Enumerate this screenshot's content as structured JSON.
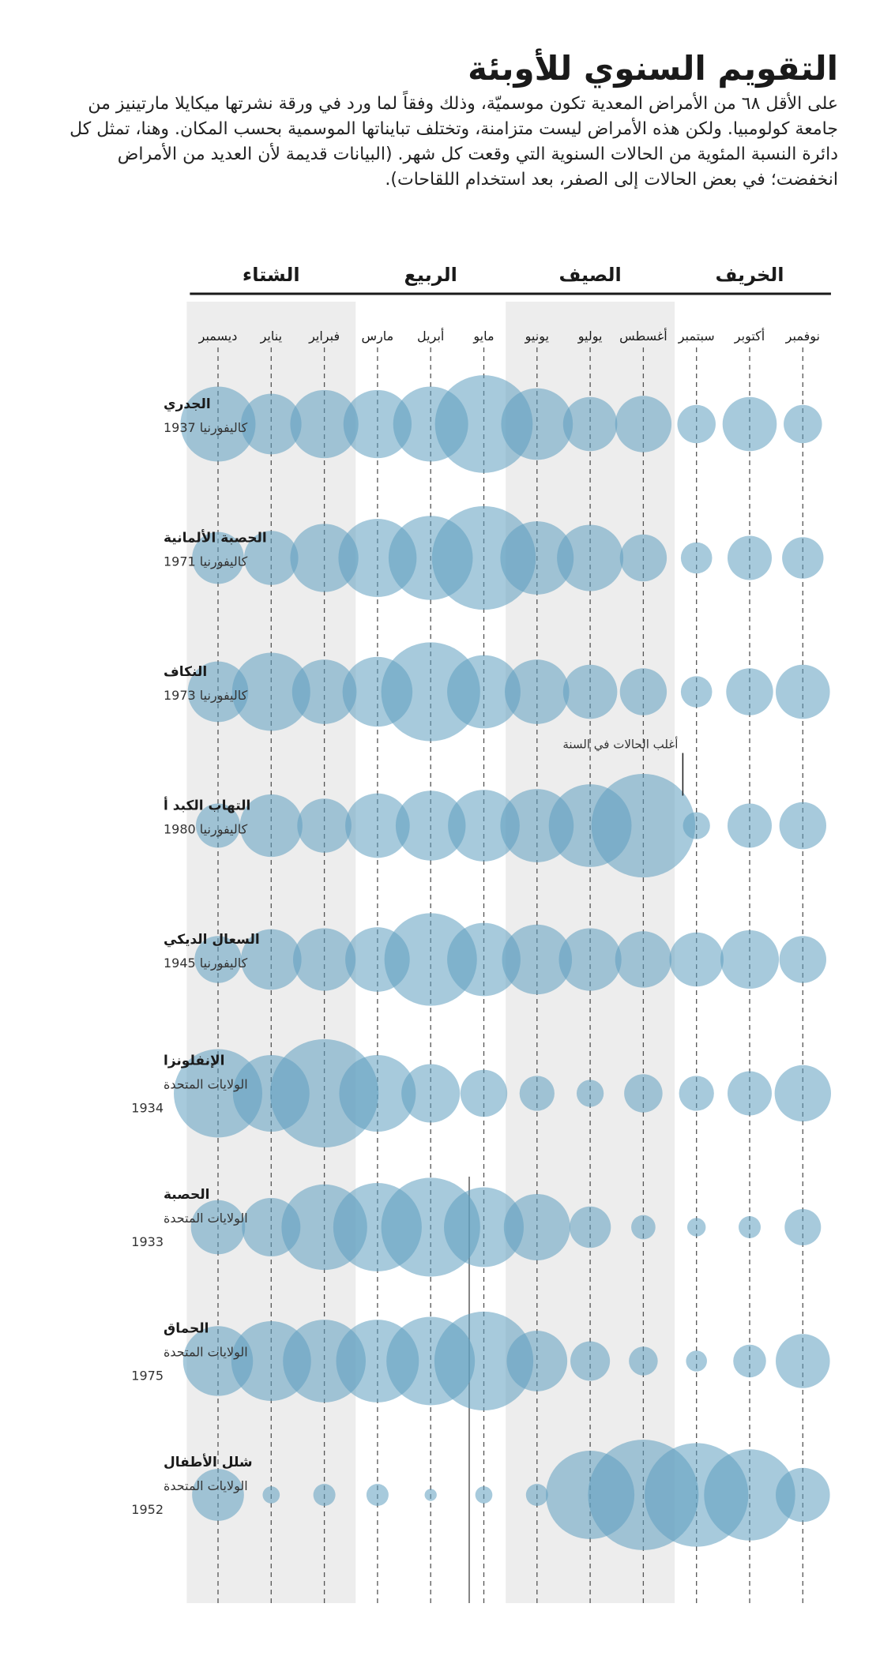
{
  "header": {
    "title": "التقويم السنوي للأوبئة",
    "intro": "على الأقل ٦٨ من الأمراض المعدية تكون موسميّة، وذلك وفقاً لما ورد في ورقة نشرتها ميكايلا مارتينيز من جامعة كولومبيا. ولكن هذه الأمراض ليست متزامنة، وتختلف تبايناتها الموسمية بحسب المكان. وهنا، تمثل كل دائرة النسبة المئوية من الحالات السنوية التي وقعت كل شهر. (البيانات قديمة لأن العديد من الأمراض انخفضت؛ في بعض الحالات إلى الصفر، بعد استخدام اللقاحات)."
  },
  "chart_data": {
    "type": "bubble-matrix",
    "months": [
      "ديسمبر",
      "يناير",
      "فبراير",
      "مارس",
      "أبريل",
      "مايو",
      "يونيو",
      "يوليو",
      "أغسطس",
      "سبتمبر",
      "أكتوبر",
      "نوفمبر"
    ],
    "seasons": [
      {
        "label": "الشتاء",
        "months": [
          "ديسمبر",
          "يناير",
          "فبراير"
        ]
      },
      {
        "label": "الربيع",
        "months": [
          "مارس",
          "أبريل",
          "مايو"
        ]
      },
      {
        "label": "الصيف",
        "months": [
          "يونيو",
          "يوليو",
          "أغسطس"
        ]
      },
      {
        "label": "الخريف",
        "months": [
          "سبتمبر",
          "أكتوبر",
          "نوفمبر"
        ]
      }
    ],
    "shaded_seasons": [
      "الشتاء",
      "الصيف"
    ],
    "annotation": {
      "text": "أغلب الحالات في السنة",
      "disease": "التهاب الكبد أ",
      "month": "أغسطس"
    },
    "series": [
      {
        "name": "الجدري",
        "place": "كاليفورنيا",
        "year": "1937",
        "values": [
          11.5,
          7.5,
          9.5,
          9.5,
          11.5,
          19.5,
          10.5,
          6,
          6.5,
          3,
          6,
          3
        ]
      },
      {
        "name": "الحصبة الألمانية",
        "place": "كاليفورنيا",
        "year": "1971",
        "values": [
          5.5,
          6,
          9.5,
          12.5,
          14.5,
          22,
          11,
          9,
          4.5,
          2,
          4,
          3.5
        ]
      },
      {
        "name": "النكاف",
        "place": "كاليفورنيا",
        "year": "1973",
        "values": [
          7.5,
          12.5,
          8.5,
          10,
          20,
          11,
          8.5,
          6,
          4.5,
          2,
          4.5,
          6
        ]
      },
      {
        "name": "التهاب الكبد أ",
        "place": "كاليفورنيا",
        "year": "1980",
        "values": [
          4,
          8,
          6,
          8.5,
          10,
          10.5,
          11,
          14,
          22,
          1.5,
          4,
          4.5
        ]
      },
      {
        "name": "السعال الديكي",
        "place": "كاليفورنيا",
        "year": "1945",
        "values": [
          4.5,
          7.5,
          8,
          8.5,
          17.5,
          11,
          10,
          8,
          6.5,
          6,
          7,
          4.5
        ]
      },
      {
        "name": "الإنفلونزا",
        "place": "الولايات المتحدة",
        "year": "1934",
        "values": [
          16,
          12,
          24,
          12,
          7,
          4.5,
          2.5,
          1.5,
          3,
          2.5,
          4,
          6.5
        ]
      },
      {
        "name": "الحصبة",
        "place": "الولايات المتحدة",
        "year": "1933",
        "values": [
          6,
          7,
          15,
          16,
          20,
          13,
          9,
          3.5,
          1.2,
          0.7,
          1,
          2.7
        ]
      },
      {
        "name": "الحماق",
        "place": "الولايات المتحدة",
        "year": "1975",
        "values": [
          10,
          13,
          14,
          14,
          16,
          20,
          7.5,
          3.2,
          1.7,
          0.9,
          2.2,
          6
        ]
      },
      {
        "name": "شلل الأطفال",
        "place": "الولايات المتحدة",
        "year": "1952",
        "values": [
          5.5,
          0.6,
          1,
          1,
          0.3,
          0.6,
          1,
          16,
          25,
          22,
          17,
          6
        ]
      }
    ],
    "colors": {
      "bubble": "#5e9ec0",
      "season_bg": "#ededed"
    }
  }
}
